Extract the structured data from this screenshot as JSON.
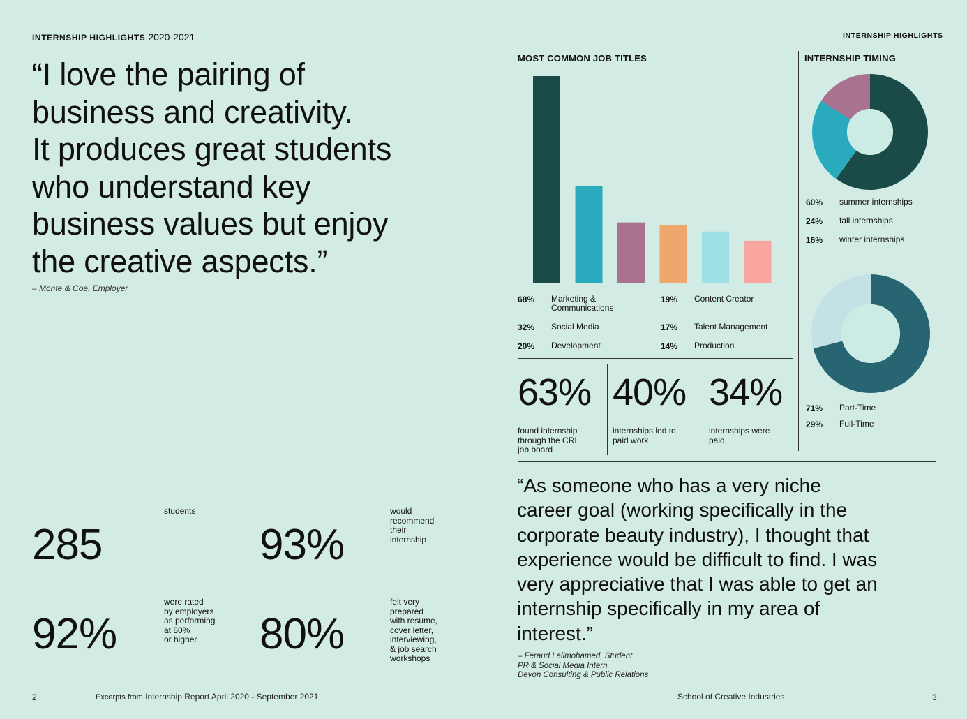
{
  "left_page": {
    "header": {
      "label": "INTERNSHIP HIGHLIGHTS",
      "year": "2020-2021"
    },
    "quote": {
      "lines": [
        "“I love the pairing of",
        "business and creativity.",
        "It produces great students",
        "who understand key",
        "business values but enjoy",
        "the creative aspects.”"
      ],
      "attribution": "– Monte & Coe, Employer"
    },
    "stats": [
      {
        "value": "285",
        "caption": [
          "students"
        ]
      },
      {
        "value": "93%",
        "caption": [
          "would",
          "recommend",
          "their",
          "internship"
        ]
      },
      {
        "value": "92%",
        "caption": [
          "were rated",
          "by employers",
          "as performing",
          "at 80%",
          "or higher"
        ]
      },
      {
        "value": "80%",
        "caption": [
          "felt very",
          "prepared",
          "with resume,",
          "cover letter,",
          "interviewing,",
          "& job search",
          "workshops"
        ]
      }
    ],
    "footer": {
      "page": "2",
      "prefix": "Excerpts from",
      "text": "Internship Report April 2020 - September 2021"
    }
  },
  "right_page": {
    "header": {
      "label": "INTERNSHIP HIGHLIGHTS"
    },
    "job_titles": {
      "title": "MOST COMMON JOB TITLES",
      "items": [
        {
          "pct": "68%",
          "label": [
            "Marketing &",
            "Communications"
          ]
        },
        {
          "pct": "32%",
          "label": [
            "Social Media"
          ]
        },
        {
          "pct": "20%",
          "label": [
            "Development"
          ]
        },
        {
          "pct": "19%",
          "label": [
            "Content Creator"
          ]
        },
        {
          "pct": "17%",
          "label": [
            "Talent Management"
          ]
        },
        {
          "pct": "14%",
          "label": [
            "Production"
          ]
        }
      ]
    },
    "timing": {
      "title": "INTERNSHIP TIMING",
      "items": [
        {
          "pct": "60%",
          "label": "summer internships"
        },
        {
          "pct": "24%",
          "label": "fall internships"
        },
        {
          "pct": "16%",
          "label": "winter internships"
        }
      ]
    },
    "worktype": {
      "items": [
        {
          "pct": "71%",
          "label": "Part-Time"
        },
        {
          "pct": "29%",
          "label": "Full-Time"
        }
      ]
    },
    "stats": [
      {
        "value": "63%",
        "caption": [
          "found internship",
          "through the CRI",
          "job board"
        ]
      },
      {
        "value": "40%",
        "caption": [
          "internships led to",
          "paid work"
        ]
      },
      {
        "value": "34%",
        "caption": [
          "internships were",
          "paid"
        ]
      }
    ],
    "quote": {
      "lines": [
        "“As someone who has a very niche",
        "career goal (working specifically in the",
        "corporate beauty industry), I thought that",
        "experience would be difficult to find. I was",
        "very appreciative that I was able to get an",
        "internship specifically in my area of",
        "interest.”"
      ],
      "attribution": [
        "– Feraud Lallmohamed, Student",
        "PR & Social Media Intern",
        "Devon Consulting & Public Relations"
      ]
    },
    "footer": {
      "text": "School of Creative Industries",
      "page": "3"
    }
  },
  "chart_data": [
    {
      "type": "bar",
      "title": "MOST COMMON JOB TITLES",
      "categories": [
        "Marketing & Communications",
        "Social Media",
        "Development",
        "Content Creator",
        "Talent Management",
        "Production"
      ],
      "values": [
        68,
        32,
        20,
        19,
        17,
        14
      ],
      "colors": [
        "#1b4b48",
        "#29abbd",
        "#a9738f",
        "#f0a76e",
        "#9fe0e6",
        "#f9a59f"
      ],
      "ylim": [
        0,
        68
      ]
    },
    {
      "type": "pie",
      "title": "INTERNSHIP TIMING",
      "categories": [
        "summer internships",
        "fall internships",
        "winter internships"
      ],
      "values": [
        60,
        24,
        16
      ],
      "colors": [
        "#1b4b48",
        "#29abbd",
        "#a9738f"
      ]
    },
    {
      "type": "pie",
      "categories": [
        "Part-Time",
        "Full-Time"
      ],
      "values": [
        71,
        29
      ],
      "colors": [
        "#276573",
        "#c4e2e6"
      ]
    }
  ]
}
